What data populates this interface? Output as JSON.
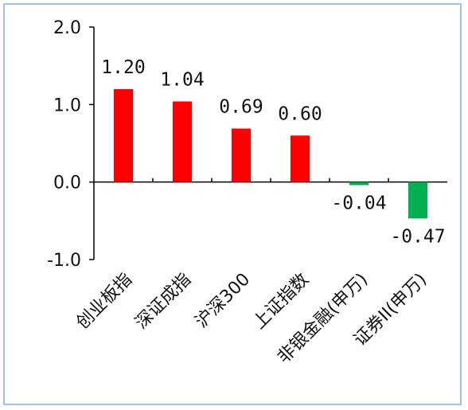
{
  "chart_data": {
    "type": "bar",
    "categories": [
      "创业板指",
      "深证成指",
      "沪深300",
      "上证指数",
      "非银金融(申万)",
      "证券II(申万)"
    ],
    "values": [
      1.2,
      1.04,
      0.69,
      0.6,
      -0.04,
      -0.47
    ],
    "value_labels": [
      "1.20",
      "1.04",
      "0.69",
      "0.60",
      "-0.04",
      "-0.47"
    ],
    "ylim": [
      -1.0,
      2.0
    ],
    "yticks": [
      2.0,
      1.0,
      0.0,
      -1.0
    ],
    "ytick_labels": [
      "2.0",
      "1.0",
      "0.0",
      "-1.0"
    ],
    "title": "",
    "xlabel": "",
    "ylabel": "",
    "grid": false,
    "colors": {
      "positive": "#ff0000",
      "negative": "#00b050",
      "axis": "#000000",
      "frame": "#9dc3e6"
    }
  }
}
